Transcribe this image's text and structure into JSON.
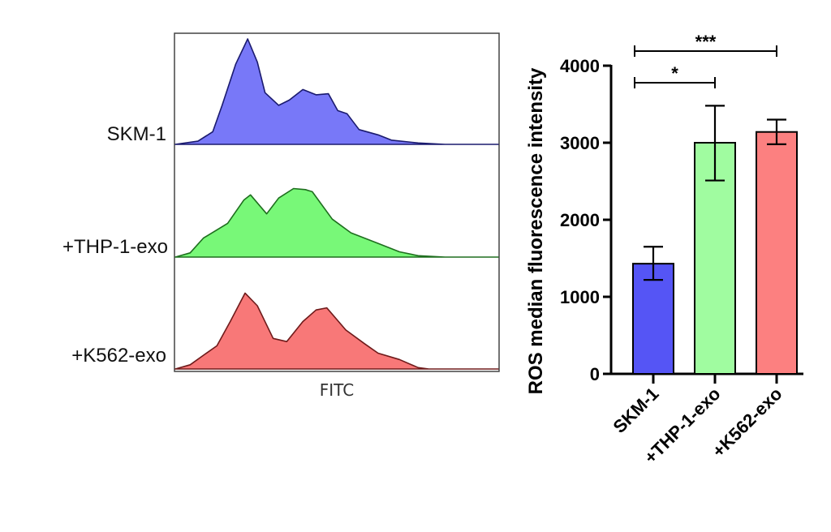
{
  "chart_data": [
    {
      "type": "area",
      "title": "",
      "xlabel": "FITC",
      "ylabel": "",
      "x_range": [
        0,
        100
      ],
      "series": [
        {
          "name": "SKM-1",
          "fill": "#7878f8",
          "stroke": "#1a1a6e",
          "x": [
            0,
            7,
            11.6,
            14.5,
            18.7,
            22.4,
            25.4,
            27.8,
            32,
            35.3,
            39.5,
            43.6,
            47.4,
            50.3,
            53.2,
            56.9,
            62.8,
            66.9,
            75.2,
            83.5,
            100
          ],
          "y": [
            0,
            0.03,
            0.12,
            0.37,
            0.76,
            1.0,
            0.78,
            0.49,
            0.37,
            0.42,
            0.52,
            0.47,
            0.48,
            0.32,
            0.29,
            0.14,
            0.09,
            0.04,
            0.013,
            0,
            0
          ]
        },
        {
          "name": "+THP-1-exo",
          "fill": "#78f878",
          "stroke": "#1e6e1e",
          "x": [
            0,
            4.6,
            8.7,
            16.2,
            21.2,
            23.3,
            28.3,
            32,
            36.6,
            40.3,
            42.4,
            48.6,
            54.4,
            62.8,
            69.4,
            75.2,
            83.5,
            100
          ],
          "y": [
            0,
            0.04,
            0.18,
            0.32,
            0.54,
            0.59,
            0.41,
            0.56,
            0.65,
            0.64,
            0.62,
            0.36,
            0.23,
            0.13,
            0.05,
            0.013,
            0,
            0
          ]
        },
        {
          "name": "+K562-exo",
          "fill": "#f87878",
          "stroke": "#6e1a1a",
          "x": [
            0,
            4.6,
            8.7,
            12.9,
            17,
            21.6,
            25.4,
            30.3,
            34.5,
            39.5,
            43.6,
            46.9,
            52.8,
            58.6,
            62.8,
            69.4,
            75.2,
            78.5,
            100
          ],
          "y": [
            0,
            0.04,
            0.13,
            0.22,
            0.45,
            0.72,
            0.6,
            0.29,
            0.26,
            0.45,
            0.56,
            0.58,
            0.37,
            0.24,
            0.15,
            0.09,
            0.013,
            0,
            0
          ]
        }
      ]
    },
    {
      "type": "bar",
      "title": "",
      "xlabel": "",
      "ylabel": "ROS median fluorescence intensity",
      "ylim": [
        0,
        4000
      ],
      "yticks": [
        0,
        1000,
        2000,
        3000,
        4000
      ],
      "categories": [
        "SKM-1",
        "+THP-1-exo",
        "+K562-exo"
      ],
      "values": [
        1430,
        3000,
        3140
      ],
      "error_low": [
        1220,
        2510,
        2980
      ],
      "error_high": [
        1650,
        3480,
        3300
      ],
      "colors": [
        "#5555f5",
        "#a0fca0",
        "#fc8080"
      ],
      "significance": [
        {
          "from": 0,
          "to": 1,
          "label": "*"
        },
        {
          "from": 0,
          "to": 2,
          "label": "***"
        }
      ]
    }
  ]
}
